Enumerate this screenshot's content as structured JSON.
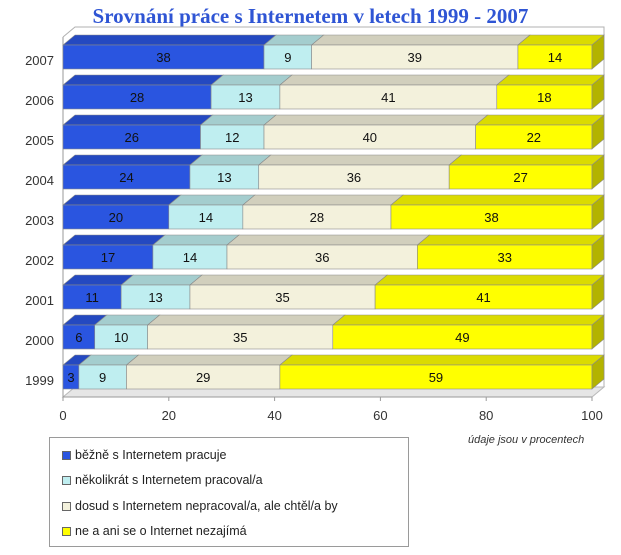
{
  "chart_data": {
    "type": "bar",
    "orientation": "horizontal",
    "stacked": true,
    "title": "Srovnání práce s Internetem v letech 1999 - 2007",
    "categories": [
      "2007",
      "2006",
      "2005",
      "2004",
      "2003",
      "2002",
      "2001",
      "2000",
      "1999"
    ],
    "series": [
      {
        "name": "běžně s Internetem pracuje",
        "color": "#2a55e0",
        "values": [
          38,
          28,
          26,
          24,
          20,
          17,
          11,
          6,
          3
        ]
      },
      {
        "name": "několikrát s Internetem pracoval/a",
        "color": "#bfeef0",
        "values": [
          9,
          13,
          12,
          13,
          14,
          14,
          13,
          10,
          9
        ]
      },
      {
        "name": "dosud s Internetem nepracoval/a, ale chtěl/a by",
        "color": "#f3f1dc",
        "values": [
          39,
          41,
          40,
          36,
          28,
          36,
          35,
          35,
          29
        ]
      },
      {
        "name": "ne a  ani se o Internet nezajímá",
        "color": "#ffff00",
        "values": [
          14,
          18,
          22,
          27,
          38,
          33,
          41,
          49,
          59
        ]
      }
    ],
    "xlim": [
      0,
      100
    ],
    "xticks": [
      "0",
      "20",
      "40",
      "60",
      "80",
      "100"
    ],
    "note": "údaje jsou v procentech",
    "legend_position": "bottom-left"
  }
}
